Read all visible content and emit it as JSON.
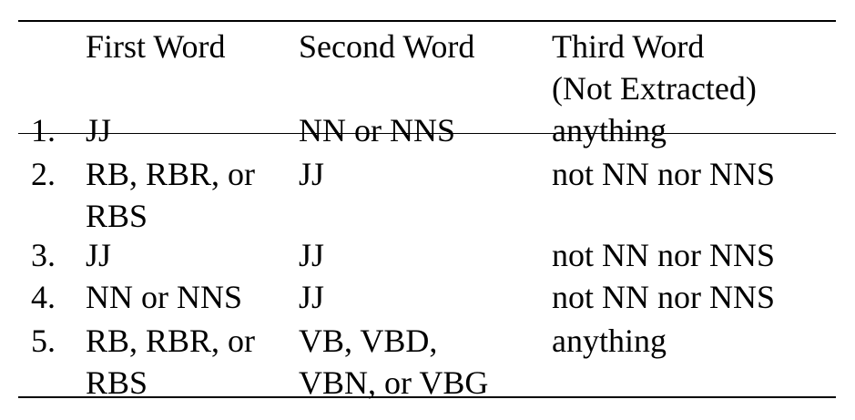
{
  "headers": {
    "first": "First Word",
    "second": "Second Word",
    "third_line1": "Third Word",
    "third_line2": "(Not Extracted)"
  },
  "rows": [
    {
      "num": "1.",
      "first": [
        "JJ"
      ],
      "second": [
        "NN or NNS"
      ],
      "third": "anything"
    },
    {
      "num": "2.",
      "first": [
        "RB, RBR, or",
        "RBS"
      ],
      "second": [
        "JJ"
      ],
      "third": "not NN nor NNS"
    },
    {
      "num": "3.",
      "first": [
        "JJ"
      ],
      "second": [
        "JJ"
      ],
      "third": "not NN nor NNS"
    },
    {
      "num": "4.",
      "first": [
        "NN or NNS"
      ],
      "second": [
        "JJ"
      ],
      "third": "not NN nor NNS"
    },
    {
      "num": "5.",
      "first": [
        "RB, RBR, or",
        "RBS"
      ],
      "second": [
        "VB, VBD,",
        "VBN, or VBG"
      ],
      "third": "anything"
    }
  ]
}
